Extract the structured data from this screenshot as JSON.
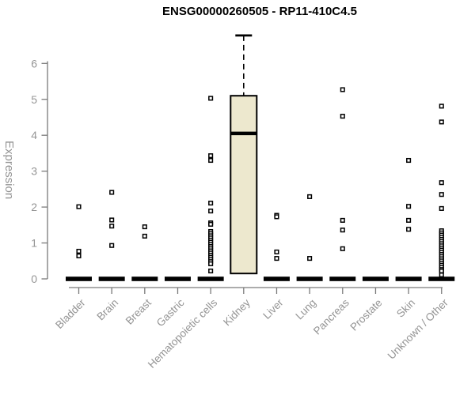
{
  "chart_data": {
    "type": "boxplot",
    "title": "ENSG00000260505 - RP11-410C4.5",
    "ylabel": "Expression",
    "xlabel": "",
    "yticks": [
      0,
      1,
      2,
      3,
      4,
      5,
      6
    ],
    "ylim": [
      0,
      6.9
    ],
    "grid": false,
    "legend": "none",
    "colors": {
      "box_fill": "#EDE8CE",
      "box_stroke": "#000000",
      "median": "#000000",
      "collapsed_box": "#000000",
      "outlier_stroke": "#000000",
      "outlier_fill": "#ffffff",
      "axis_line": "#7a7a7a",
      "tick_label": "#949494",
      "title": "#000000",
      "background": "#ffffff"
    },
    "categories": [
      "Bladder",
      "Brain",
      "Breast",
      "Gastric",
      "Hematopoietic cells",
      "Kidney",
      "Liver",
      "Lung",
      "Pancreas",
      "Prostate",
      "Skin",
      "Unknown / Other"
    ],
    "series": [
      {
        "category": "Bladder",
        "q1": 0,
        "median": 0,
        "q3": 0,
        "whisker_low": 0,
        "whisker_high": 0,
        "outliers": [
          2.01,
          0.77,
          0.64
        ]
      },
      {
        "category": "Brain",
        "q1": 0,
        "median": 0,
        "q3": 0,
        "whisker_low": 0,
        "whisker_high": 0,
        "outliers": [
          2.41,
          1.64,
          1.47,
          0.93
        ]
      },
      {
        "category": "Breast",
        "q1": 0,
        "median": 0,
        "q3": 0,
        "whisker_low": 0,
        "whisker_high": 0,
        "outliers": [
          1.45,
          1.19
        ]
      },
      {
        "category": "Gastric",
        "q1": 0,
        "median": 0,
        "q3": 0,
        "whisker_low": 0,
        "whisker_high": 0,
        "outliers": []
      },
      {
        "category": "Hematopoietic cells",
        "q1": 0,
        "median": 0,
        "q3": 0,
        "whisker_low": 0,
        "whisker_high": 0,
        "outliers": [
          5.03,
          3.43,
          3.3,
          2.11,
          1.89,
          1.56,
          1.52,
          1.32,
          1.26,
          1.2,
          1.14,
          1.08,
          1.02,
          0.96,
          0.9,
          0.84,
          0.78,
          0.72,
          0.66,
          0.6,
          0.54,
          0.48,
          0.42,
          0.22
        ]
      },
      {
        "category": "Kidney",
        "q1": 0.15,
        "median": 4.05,
        "q3": 5.1,
        "whisker_low": 0.15,
        "whisker_high": 6.78,
        "outliers": []
      },
      {
        "category": "Liver",
        "q1": 0,
        "median": 0,
        "q3": 0,
        "whisker_low": 0,
        "whisker_high": 0,
        "outliers": [
          1.77,
          1.73,
          0.75,
          0.57
        ]
      },
      {
        "category": "Lung",
        "q1": 0,
        "median": 0,
        "q3": 0,
        "whisker_low": 0,
        "whisker_high": 0,
        "outliers": [
          2.29,
          0.57
        ]
      },
      {
        "category": "Pancreas",
        "q1": 0,
        "median": 0,
        "q3": 0,
        "whisker_low": 0,
        "whisker_high": 0,
        "outliers": [
          5.27,
          4.53,
          1.63,
          1.36,
          0.84
        ]
      },
      {
        "category": "Prostate",
        "q1": 0,
        "median": 0,
        "q3": 0,
        "whisker_low": 0,
        "whisker_high": 0,
        "outliers": []
      },
      {
        "category": "Skin",
        "q1": 0,
        "median": 0,
        "q3": 0,
        "whisker_low": 0,
        "whisker_high": 0,
        "outliers": [
          3.3,
          2.02,
          1.63,
          1.38
        ]
      },
      {
        "category": "Unknown / Other",
        "q1": 0,
        "median": 0,
        "q3": 0,
        "whisker_low": 0,
        "whisker_high": 0,
        "outliers": [
          4.81,
          4.37,
          2.68,
          2.35,
          1.96,
          1.34,
          1.28,
          1.22,
          1.16,
          1.1,
          1.04,
          0.98,
          0.92,
          0.86,
          0.8,
          0.74,
          0.68,
          0.62,
          0.56,
          0.5,
          0.44,
          0.38,
          0.32,
          0.26,
          0.22,
          0.11
        ]
      }
    ]
  }
}
